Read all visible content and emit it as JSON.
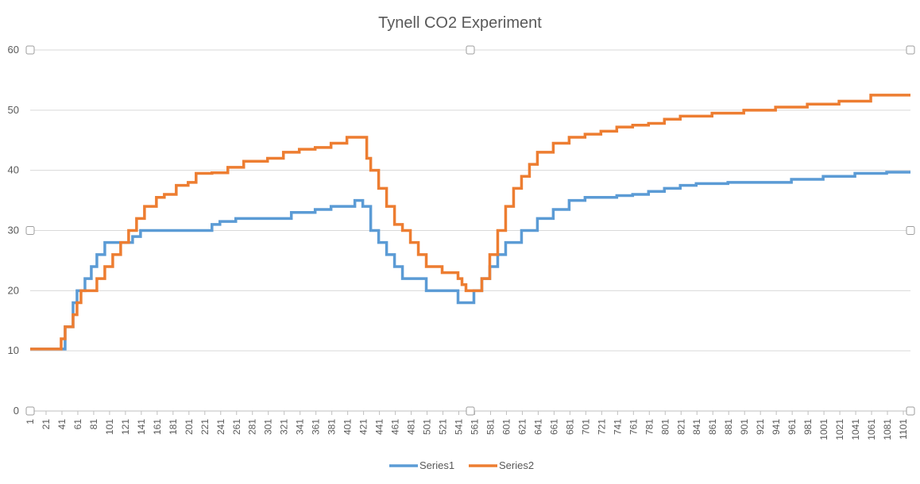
{
  "chart_data": {
    "type": "line",
    "title": "Tynell CO2 Experiment",
    "xlabel": "",
    "ylabel": "",
    "xlim": [
      1,
      1110
    ],
    "ylim": [
      0,
      60
    ],
    "y_ticks": [
      0,
      10,
      20,
      30,
      40,
      50,
      60
    ],
    "x_ticks": [
      1,
      21,
      41,
      61,
      81,
      101,
      121,
      141,
      161,
      181,
      201,
      221,
      241,
      261,
      281,
      301,
      321,
      341,
      361,
      381,
      401,
      421,
      441,
      461,
      481,
      501,
      521,
      541,
      561,
      581,
      601,
      621,
      641,
      661,
      681,
      701,
      721,
      741,
      761,
      781,
      801,
      821,
      841,
      861,
      881,
      901,
      921,
      941,
      961,
      981,
      1001,
      1021,
      1041,
      1061,
      1081,
      1101
    ],
    "grid": true,
    "legend_position": "bottom",
    "series": [
      {
        "name": "Series1",
        "color": "#5b9bd5",
        "x": [
          1,
          35,
          45,
          55,
          60,
          65,
          70,
          78,
          85,
          95,
          110,
          125,
          130,
          140,
          150,
          165,
          180,
          200,
          210,
          230,
          240,
          260,
          280,
          300,
          330,
          360,
          380,
          400,
          410,
          420,
          430,
          440,
          450,
          460,
          470,
          480,
          500,
          520,
          540,
          545,
          555,
          560,
          570,
          580,
          590,
          600,
          620,
          640,
          660,
          680,
          700,
          740,
          760,
          780,
          800,
          820,
          840,
          880,
          920,
          960,
          1000,
          1040,
          1080,
          1110
        ],
        "y": [
          10.3,
          10.3,
          14,
          18,
          20,
          20,
          22,
          24,
          26,
          28,
          28,
          28,
          29,
          30,
          30,
          30,
          30,
          30,
          30,
          31,
          31.5,
          32,
          32,
          32,
          33,
          33.5,
          34,
          34,
          35,
          34,
          30,
          28,
          26,
          24,
          22,
          22,
          20,
          20,
          18,
          18,
          18,
          20,
          22,
          24,
          26,
          28,
          30,
          32,
          33.5,
          35,
          35.5,
          35.8,
          36,
          36.5,
          37,
          37.5,
          37.8,
          38,
          38,
          38.5,
          39,
          39.5,
          39.7,
          39.7
        ]
      },
      {
        "name": "Series2",
        "color": "#ed7d31",
        "x": [
          1,
          35,
          40,
          45,
          55,
          60,
          65,
          75,
          85,
          95,
          105,
          115,
          125,
          135,
          145,
          160,
          170,
          185,
          200,
          210,
          230,
          250,
          270,
          290,
          300,
          320,
          340,
          360,
          380,
          400,
          410,
          420,
          425,
          430,
          440,
          450,
          460,
          470,
          480,
          490,
          500,
          520,
          540,
          545,
          550,
          560,
          570,
          580,
          590,
          600,
          610,
          620,
          630,
          640,
          660,
          680,
          700,
          720,
          740,
          760,
          780,
          800,
          820,
          860,
          900,
          940,
          980,
          1020,
          1060,
          1110
        ],
        "y": [
          10.3,
          10.3,
          12,
          14,
          16,
          18,
          20,
          20,
          22,
          24,
          26,
          28,
          30,
          32,
          34,
          35.5,
          36,
          37.5,
          38,
          39.5,
          39.6,
          40.5,
          41.5,
          41.5,
          42,
          43,
          43.5,
          43.8,
          44.5,
          45.5,
          45.5,
          45.5,
          42,
          40,
          37,
          34,
          31,
          30,
          28,
          26,
          24,
          23,
          22,
          21,
          20,
          20,
          22,
          26,
          30,
          34,
          37,
          39,
          41,
          43,
          44.5,
          45.5,
          46,
          46.5,
          47.2,
          47.5,
          47.8,
          48.5,
          49,
          49.5,
          50,
          50.5,
          51,
          51.5,
          52.5,
          52.5
        ]
      }
    ]
  }
}
